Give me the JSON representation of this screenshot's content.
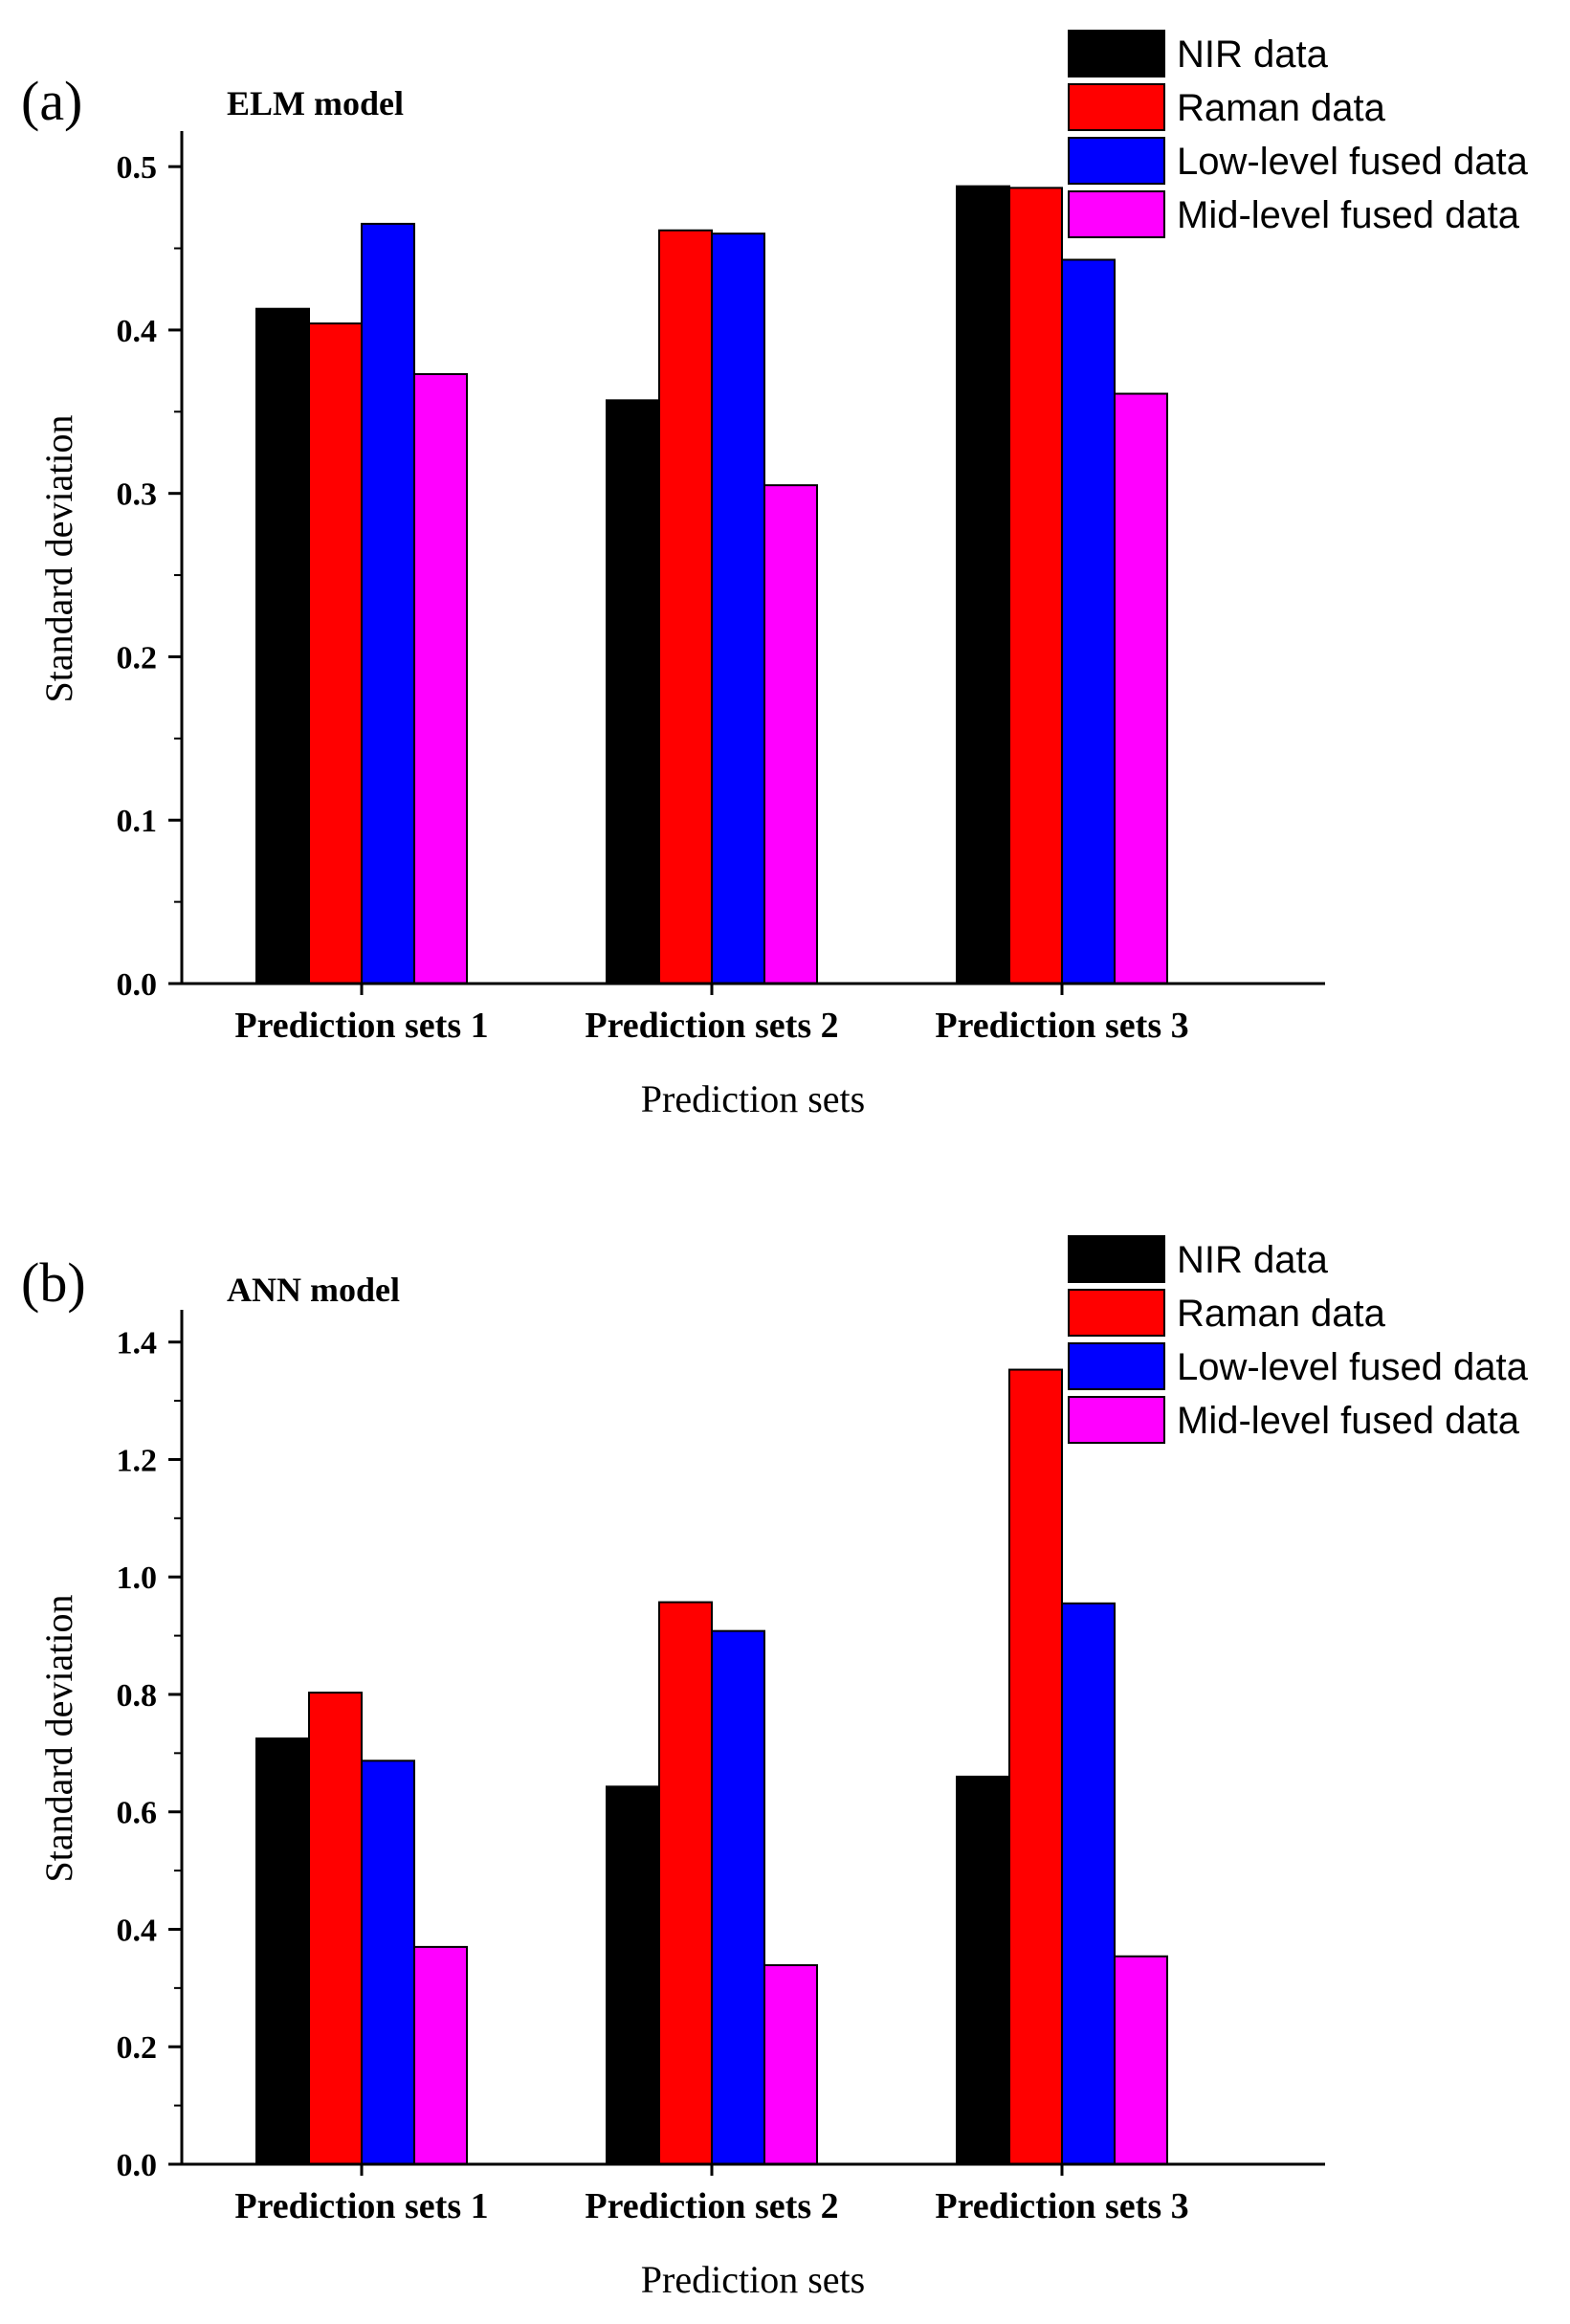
{
  "chart_data": [
    {
      "type": "bar",
      "panel_label": "(a)",
      "title": "ELM model",
      "xlabel": "Prediction sets",
      "ylabel": "Standard deviation",
      "categories": [
        "Prediction sets 1",
        "Prediction sets 2",
        "Prediction sets 3"
      ],
      "ylim": [
        0,
        0.52
      ],
      "yticks": [
        0.0,
        0.1,
        0.2,
        0.3,
        0.4,
        0.5
      ],
      "ytick_labels": [
        "0.0",
        "0.1",
        "0.2",
        "0.3",
        "0.4",
        "0.5"
      ],
      "legend_position": "top-right",
      "series": [
        {
          "name": "NIR data",
          "color": "#000000",
          "values": [
            0.413,
            0.357,
            0.488
          ]
        },
        {
          "name": "Raman data",
          "color": "#ff0000",
          "values": [
            0.404,
            0.461,
            0.487
          ]
        },
        {
          "name": "Low-level fused data",
          "color": "#0000ff",
          "values": [
            0.465,
            0.459,
            0.443
          ]
        },
        {
          "name": "Mid-level fused data",
          "color": "#ff00ff",
          "values": [
            0.373,
            0.305,
            0.361
          ]
        }
      ]
    },
    {
      "type": "bar",
      "panel_label": "(b)",
      "title": "ANN model",
      "xlabel": "Prediction sets",
      "ylabel": "Standard deviation",
      "categories": [
        "Prediction sets 1",
        "Prediction sets 2",
        "Prediction sets 3"
      ],
      "ylim": [
        0,
        1.45
      ],
      "yticks": [
        0.0,
        0.2,
        0.4,
        0.6,
        0.8,
        1.0,
        1.2,
        1.4
      ],
      "ytick_labels": [
        "0.0",
        "0.2",
        "0.4",
        "0.6",
        "0.8",
        "1.0",
        "1.2",
        "1.4"
      ],
      "legend_position": "top-right",
      "series": [
        {
          "name": "NIR data",
          "color": "#000000",
          "values": [
            0.725,
            0.643,
            0.66
          ]
        },
        {
          "name": "Raman data",
          "color": "#ff0000",
          "values": [
            0.803,
            0.957,
            1.353
          ]
        },
        {
          "name": "Low-level fused data",
          "color": "#0000ff",
          "values": [
            0.687,
            0.908,
            0.955
          ]
        },
        {
          "name": "Mid-level fused data",
          "color": "#ff00ff",
          "values": [
            0.37,
            0.339,
            0.354
          ]
        }
      ]
    }
  ]
}
